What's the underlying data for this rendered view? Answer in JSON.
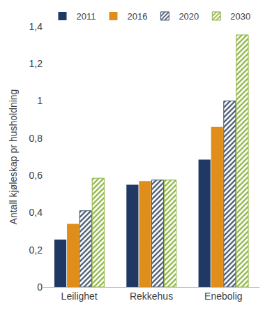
{
  "chart_data": {
    "type": "bar",
    "y_label": "Antall kjøleskap pr husholdning",
    "categories": [
      "Leilighet",
      "Rekkehus",
      "Enebolig"
    ],
    "series": [
      {
        "name": "2011",
        "color": "#203864",
        "values": [
          0.255,
          0.55,
          0.685
        ]
      },
      {
        "name": "2016",
        "color": "#E08E1B",
        "values": [
          0.34,
          0.57,
          0.86
        ]
      },
      {
        "name": "2020",
        "color": "#44546A",
        "marker": "hatched",
        "values": [
          0.41,
          0.575,
          1.0
        ]
      },
      {
        "name": "2030",
        "color": "#8DB33F",
        "marker": "hatched",
        "values": [
          0.585,
          0.575,
          1.355
        ]
      }
    ],
    "ylim": [
      0,
      1.4
    ],
    "yticks": [
      0,
      {
        "value": 0.2,
        "label": "0,2"
      },
      {
        "value": 0.4,
        "label": "0,4"
      },
      {
        "value": 0.6,
        "label": "0,6"
      },
      {
        "value": 0.8,
        "label": "0,8"
      },
      1,
      {
        "value": 1.2,
        "label": "1,2"
      },
      {
        "value": 1.4,
        "label": "1,4"
      }
    ],
    "grid": false,
    "legend": "top"
  }
}
